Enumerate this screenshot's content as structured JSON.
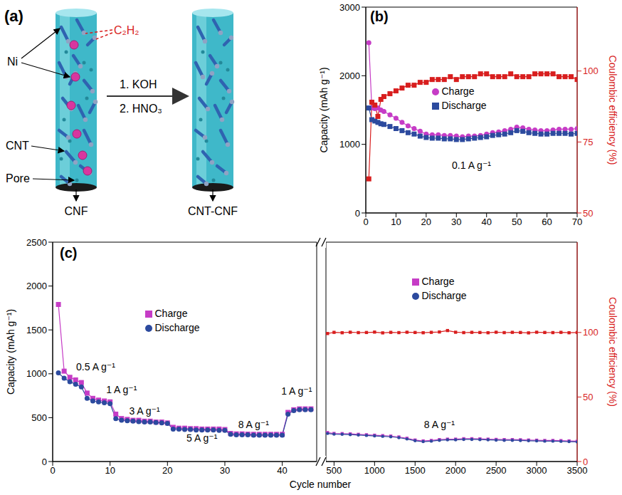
{
  "diagram": {
    "panel": "(a)",
    "labels": {
      "ni": "Ni",
      "c2h2": "C₂H₂",
      "cnt": "CNT",
      "pore": "Pore",
      "cnf": "CNF",
      "product": "CNT-CNF"
    },
    "steps": [
      "1. KOH",
      "2. HNO₃"
    ]
  },
  "chart_data": [
    {
      "type": "line",
      "panel": "(b)",
      "y_label": "Capacity (mAh g⁻¹)",
      "y2_label": "Coulombic efficiency (%)",
      "legend": "upper center",
      "xlim": [
        0,
        70
      ],
      "xticks": [
        0,
        10,
        20,
        30,
        40,
        50,
        60,
        70
      ],
      "ylim": [
        0,
        3000
      ],
      "yticks": [
        0,
        1000,
        2000,
        3000
      ],
      "y2lim": [
        50,
        122.5
      ],
      "y2ticks": [
        50,
        75,
        100
      ],
      "x": [
        1,
        2,
        3,
        4,
        5,
        6,
        8,
        10,
        12,
        14,
        16,
        18,
        20,
        22,
        24,
        26,
        28,
        30,
        32,
        34,
        36,
        38,
        40,
        42,
        44,
        46,
        48,
        50,
        52,
        54,
        56,
        58,
        60,
        62,
        64,
        66,
        68,
        70
      ],
      "series": [
        {
          "name": "Charge",
          "color": "#c63cc6",
          "marker": "circle",
          "values": [
            2480,
            1530,
            1520,
            1530,
            1500,
            1480,
            1430,
            1380,
            1320,
            1270,
            1230,
            1190,
            1150,
            1140,
            1140,
            1130,
            1130,
            1120,
            1110,
            1120,
            1120,
            1130,
            1150,
            1170,
            1180,
            1200,
            1220,
            1250,
            1240,
            1220,
            1210,
            1200,
            1200,
            1210,
            1220,
            1220,
            1220,
            1230
          ]
        },
        {
          "name": "Discharge",
          "color": "#2c4a9e",
          "marker": "square",
          "values": [
            1530,
            1360,
            1340,
            1320,
            1300,
            1290,
            1260,
            1230,
            1200,
            1170,
            1150,
            1120,
            1100,
            1090,
            1090,
            1080,
            1080,
            1070,
            1070,
            1080,
            1090,
            1100,
            1110,
            1130,
            1140,
            1150,
            1170,
            1200,
            1190,
            1170,
            1160,
            1150,
            1150,
            1160,
            1160,
            1160,
            1150,
            1160
          ]
        },
        {
          "color": "#d81e1e",
          "marker": "square",
          "axis": "y2",
          "values": [
            62,
            89,
            88,
            84,
            90,
            91,
            92,
            93,
            94,
            95,
            95,
            96,
            96,
            97,
            97,
            97,
            98,
            97,
            98,
            98,
            98,
            99,
            99,
            98,
            98,
            98,
            99,
            98,
            98,
            98,
            99,
            99,
            99,
            99,
            98,
            98,
            98,
            97
          ]
        }
      ],
      "annotations": [
        {
          "text": "0.1 A g⁻¹",
          "x": 35,
          "y": 700
        }
      ]
    },
    {
      "type": "line",
      "panel": "(c)",
      "y_label": "Capacity (mAh g⁻¹)",
      "y2_label": "Coulombic efficiency (%)",
      "x_label": "Cycle number",
      "legend": "upper center",
      "ylim": [
        0,
        2500
      ],
      "yticks": [
        0,
        500,
        1000,
        1500,
        2000,
        2500
      ],
      "y2lim": [
        0,
        170
      ],
      "y2ticks": [
        0,
        50,
        100
      ],
      "segments": [
        {
          "xlim": [
            0,
            46
          ],
          "xticks": [
            0,
            10,
            20,
            30,
            40
          ],
          "x": [
            1,
            2,
            3,
            4,
            5,
            6,
            7,
            8,
            9,
            10,
            11,
            12,
            13,
            14,
            15,
            16,
            17,
            18,
            19,
            20,
            21,
            22,
            23,
            24,
            25,
            26,
            27,
            28,
            29,
            30,
            31,
            32,
            33,
            34,
            35,
            36,
            37,
            38,
            39,
            40,
            41,
            42,
            43,
            44,
            45
          ],
          "series": [
            {
              "name": "Charge",
              "color": "#c63cc6",
              "marker": "square",
              "values": [
                1790,
                1030,
                960,
                930,
                900,
                780,
                720,
                700,
                690,
                680,
                540,
                490,
                480,
                470,
                470,
                460,
                460,
                450,
                450,
                440,
                390,
                380,
                380,
                375,
                375,
                370,
                370,
                370,
                370,
                365,
                320,
                315,
                315,
                312,
                310,
                310,
                310,
                310,
                310,
                310,
                560,
                590,
                600,
                600,
                600
              ]
            },
            {
              "name": "Discharge",
              "color": "#2c4a9e",
              "marker": "circle",
              "values": [
                1010,
                950,
                910,
                880,
                850,
                720,
                690,
                680,
                670,
                660,
                490,
                470,
                465,
                460,
                455,
                450,
                450,
                445,
                440,
                435,
                370,
                370,
                365,
                365,
                360,
                360,
                360,
                360,
                355,
                355,
                310,
                305,
                305,
                305,
                300,
                300,
                300,
                300,
                300,
                300,
                540,
                580,
                590,
                590,
                590
              ]
            }
          ],
          "annotations": [
            {
              "text": "0.5 A g⁻¹",
              "x": 7.5,
              "y": 1080
            },
            {
              "text": "1 A g⁻¹",
              "x": 12,
              "y": 820
            },
            {
              "text": "3 A g⁻¹",
              "x": 16,
              "y": 580
            },
            {
              "text": "5 A g⁻¹",
              "x": 26,
              "y": 270
            },
            {
              "text": "8 A g⁻¹",
              "x": 35,
              "y": 420
            },
            {
              "text": "1 A g⁻¹",
              "x": 42.5,
              "y": 800
            }
          ]
        },
        {
          "xlim": [
            400,
            3500
          ],
          "xticks": [
            500,
            1000,
            1500,
            2000,
            2500,
            3000,
            3500
          ],
          "x": [
            420,
            500,
            600,
            700,
            800,
            900,
            1000,
            1100,
            1200,
            1300,
            1400,
            1500,
            1600,
            1700,
            1800,
            1900,
            2000,
            2100,
            2200,
            2300,
            2400,
            2500,
            2600,
            2700,
            2800,
            2900,
            3000,
            3100,
            3200,
            3300,
            3400,
            3500
          ],
          "series": [
            {
              "name": "Charge",
              "color": "#c63cc6",
              "marker": "square",
              "values": [
                330,
                320,
                318,
                315,
                310,
                305,
                300,
                295,
                290,
                280,
                265,
                245,
                235,
                240,
                250,
                255,
                255,
                260,
                260,
                258,
                255,
                252,
                250,
                250,
                248,
                245,
                243,
                240,
                240,
                238,
                235,
                232
              ]
            },
            {
              "name": "Discharge",
              "color": "#2c4a9e",
              "marker": "circle",
              "values": [
                320,
                312,
                310,
                307,
                302,
                297,
                292,
                287,
                282,
                272,
                257,
                237,
                227,
                232,
                242,
                247,
                247,
                252,
                252,
                250,
                247,
                244,
                242,
                242,
                240,
                237,
                235,
                232,
                232,
                230,
                227,
                224
              ]
            },
            {
              "color": "#d81e1e",
              "marker": "square",
              "axis": "y2",
              "values": [
                99.2,
                100.1,
                99.8,
                100.2,
                99.9,
                100.0,
                100.3,
                99.7,
                100.1,
                99.9,
                100.2,
                100.0,
                99.8,
                100.1,
                100.4,
                101.5,
                100.2,
                99.9,
                100.1,
                100.0,
                99.8,
                100.2,
                99.9,
                100.1,
                100.0,
                99.7,
                100.2,
                100.0,
                99.9,
                100.1,
                99.8,
                100.0
              ]
            }
          ],
          "annotations": [
            {
              "text": "8 A g⁻¹",
              "x": 1800,
              "y": 420
            }
          ]
        }
      ]
    }
  ]
}
